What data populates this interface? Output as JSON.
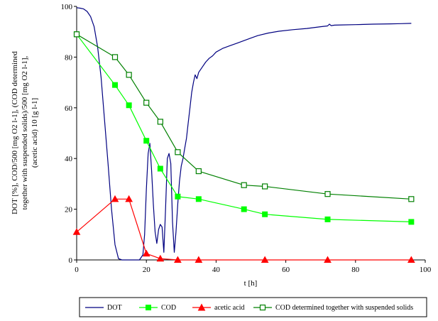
{
  "chart_data": {
    "type": "line",
    "xlabel": "t [h]",
    "ylabel_lines": [
      "DOT [%], COD/500 [mg O2 l-1], (COD determined",
      "together with suspended solids)/500 [mg O2 l-1],",
      "(acetic acid) 10 [g l-1]"
    ],
    "xlim": [
      0,
      100
    ],
    "ylim": [
      0,
      100
    ],
    "x_ticks": [
      "0",
      "20",
      "40",
      "60",
      "80",
      "100"
    ],
    "y_ticks": [
      "0",
      "20",
      "40",
      "60",
      "80",
      "100"
    ],
    "legend_position": "bottom",
    "series": [
      {
        "name": "DOT",
        "color": "#000080",
        "marker": "none",
        "x": [
          0,
          1,
          2,
          3,
          4,
          5,
          6,
          7,
          8,
          9,
          10,
          11,
          12,
          13,
          14,
          15,
          16,
          17,
          18,
          19,
          19.5,
          20,
          20.5,
          21,
          21.5,
          22,
          22.5,
          23,
          23.5,
          24,
          24.5,
          25,
          25.5,
          26,
          26.5,
          27,
          27.5,
          28,
          28.5,
          29,
          29.5,
          30,
          30.5,
          31,
          31.5,
          32,
          32.5,
          33,
          33.5,
          34,
          34.5,
          35,
          36,
          37,
          38,
          39,
          40,
          42,
          44,
          46,
          48,
          50,
          52,
          55,
          58,
          62,
          66,
          70,
          72,
          72.5,
          73,
          74,
          76,
          80,
          85,
          90,
          93,
          96
        ],
        "y": [
          99.5,
          99.3,
          99,
          98,
          96,
          92,
          84,
          72,
          55,
          38,
          20,
          6,
          0.5,
          0,
          0,
          0,
          0,
          0,
          0,
          2,
          10,
          28,
          42,
          46,
          35,
          22,
          11,
          6.5,
          12,
          14,
          13,
          3,
          20,
          40,
          42,
          38,
          15,
          3,
          11,
          22,
          31,
          37,
          40,
          44,
          48,
          54,
          60,
          66,
          70,
          73,
          71.5,
          74,
          76,
          78,
          79.5,
          80.5,
          82,
          83.5,
          84.5,
          85.5,
          86.5,
          87.5,
          88.5,
          89.5,
          90.2,
          90.8,
          91.3,
          92,
          92.3,
          93,
          92.4,
          92.6,
          92.7,
          92.8,
          93,
          93.1,
          93.2,
          93.3
        ]
      },
      {
        "name": "COD",
        "color": "#00ff00",
        "marker": "filled-square",
        "x": [
          0,
          11,
          15,
          20,
          24,
          29,
          35,
          48,
          54,
          72,
          96
        ],
        "y": [
          89,
          69,
          61,
          47,
          36,
          25,
          24,
          20,
          18,
          16,
          15
        ]
      },
      {
        "name": "acetic acid",
        "color": "#ff0000",
        "marker": "filled-triangle",
        "x": [
          0,
          11,
          15,
          20,
          24,
          29,
          35,
          44,
          54,
          72,
          96
        ],
        "y": [
          11,
          24,
          24,
          2.5,
          0.5,
          0,
          0,
          0,
          0,
          0,
          0
        ],
        "visible": [
          true,
          true,
          true,
          true,
          true,
          true,
          true,
          false,
          true,
          true,
          true
        ]
      },
      {
        "name": "COD determined together with suspended solids",
        "color": "#008000",
        "marker": "open-square",
        "x": [
          0,
          11,
          15,
          20,
          24,
          29,
          35,
          48,
          54,
          72,
          96
        ],
        "y": [
          89,
          80,
          73,
          62,
          54.5,
          42.5,
          35,
          29.5,
          29,
          26,
          24
        ]
      }
    ]
  }
}
